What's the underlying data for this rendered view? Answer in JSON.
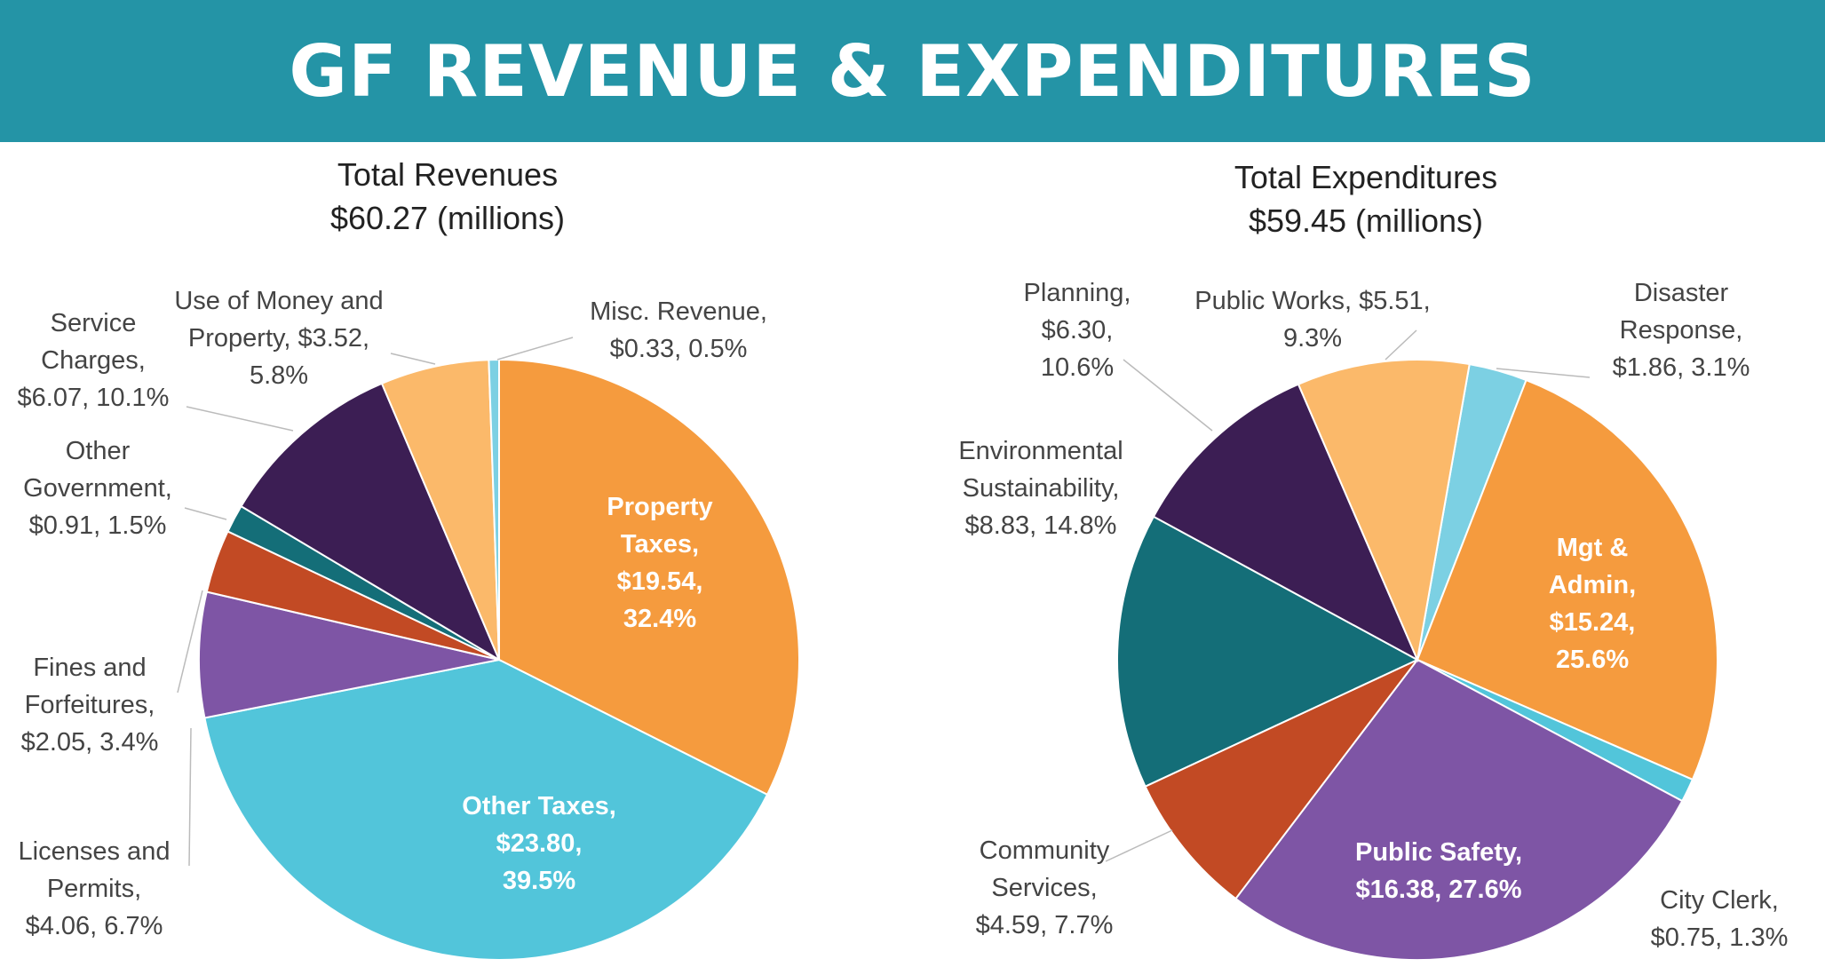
{
  "header": {
    "title": "GF REVENUE & EXPENDITURES"
  },
  "chart_data": [
    {
      "type": "pie",
      "title": "Total Revenues",
      "subtitle": "$60.27 (millions)",
      "start_angle_deg": 0,
      "slices": [
        {
          "key": "property",
          "lines": [
            "Property",
            "Taxes,",
            "$19.54,",
            "32.4%"
          ],
          "value": 19.54,
          "percent": 32.4,
          "color": "#F59B3E"
        },
        {
          "key": "other-taxes",
          "lines": [
            "Other Taxes,",
            "$23.80,",
            "39.5%"
          ],
          "value": 23.8,
          "percent": 39.5,
          "color": "#52C5DA"
        },
        {
          "key": "licenses",
          "lines": [
            "Licenses and",
            "Permits,",
            "$4.06, 6.7%"
          ],
          "value": 4.06,
          "percent": 6.7,
          "color": "#7E55A5"
        },
        {
          "key": "fines",
          "lines": [
            "Fines and",
            "Forfeitures,",
            "$2.05, 3.4%"
          ],
          "value": 2.05,
          "percent": 3.4,
          "color": "#C24A24"
        },
        {
          "key": "other-gov",
          "lines": [
            "Other",
            "Government,",
            "$0.91, 1.5%"
          ],
          "value": 0.91,
          "percent": 1.5,
          "color": "#146E78"
        },
        {
          "key": "service",
          "lines": [
            "Service",
            "Charges,",
            "$6.07, 10.1%"
          ],
          "value": 6.07,
          "percent": 10.1,
          "color": "#3C1E54"
        },
        {
          "key": "use-money",
          "lines": [
            "Use of Money and",
            "Property, $3.52,",
            "5.8%"
          ],
          "value": 3.52,
          "percent": 5.8,
          "color": "#FBB96A"
        },
        {
          "key": "misc",
          "lines": [
            "Misc. Revenue,",
            "$0.33, 0.5%"
          ],
          "value": 0.33,
          "percent": 0.5,
          "color": "#7CD0E3"
        }
      ]
    },
    {
      "type": "pie",
      "title": "Total Expenditures",
      "subtitle": "$59.45 (millions)",
      "start_angle_deg": 10,
      "slices": [
        {
          "key": "disaster",
          "lines": [
            "Disaster",
            "Response,",
            "$1.86, 3.1%"
          ],
          "value": 1.86,
          "percent": 3.1,
          "color": "#7CD0E3"
        },
        {
          "key": "mgt",
          "lines": [
            "Mgt &",
            "Admin,",
            "$15.24,",
            "25.6%"
          ],
          "value": 15.24,
          "percent": 25.6,
          "color": "#F59B3E"
        },
        {
          "key": "clerk",
          "lines": [
            "City Clerk,",
            "$0.75, 1.3%"
          ],
          "value": 0.75,
          "percent": 1.3,
          "color": "#52C5DA"
        },
        {
          "key": "safety",
          "lines": [
            "Public Safety,",
            "$16.38, 27.6%"
          ],
          "value": 16.38,
          "percent": 27.6,
          "color": "#7E55A5"
        },
        {
          "key": "community",
          "lines": [
            "Community",
            "Services,",
            "$4.59, 7.7%"
          ],
          "value": 4.59,
          "percent": 7.7,
          "color": "#C24A24"
        },
        {
          "key": "env",
          "lines": [
            "Environmental",
            "Sustainability,",
            "$8.83, 14.8%"
          ],
          "value": 8.83,
          "percent": 14.8,
          "color": "#146E78"
        },
        {
          "key": "planning",
          "lines": [
            "Planning,",
            "$6.30,",
            "10.6%"
          ],
          "value": 6.3,
          "percent": 10.6,
          "color": "#3C1E54"
        },
        {
          "key": "public-works",
          "lines": [
            "Public Works, $5.51,",
            "9.3%"
          ],
          "value": 5.51,
          "percent": 9.3,
          "color": "#FBB96A"
        }
      ]
    }
  ]
}
